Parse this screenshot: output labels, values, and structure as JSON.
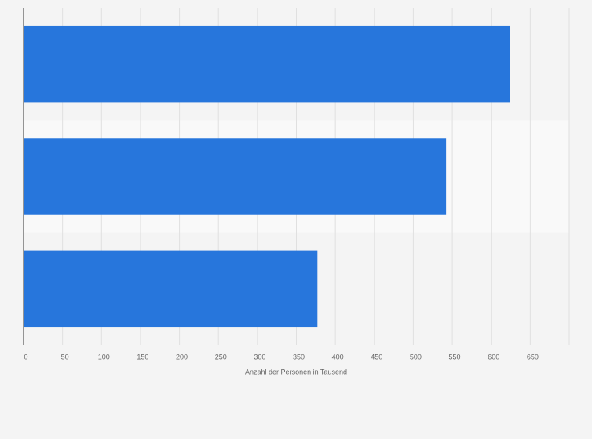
{
  "chart_data": {
    "type": "bar",
    "orientation": "horizontal",
    "x_label": "Anzahl der Personen in Tausend",
    "categories": [
      null,
      null,
      null
    ],
    "values": [
      624,
      542,
      377
    ],
    "color": "#2776dc",
    "xlim": [
      0,
      700
    ],
    "xticks": [
      0,
      50,
      100,
      150,
      200,
      250,
      300,
      350,
      400,
      450,
      500,
      550,
      600,
      650
    ],
    "grid": true
  }
}
